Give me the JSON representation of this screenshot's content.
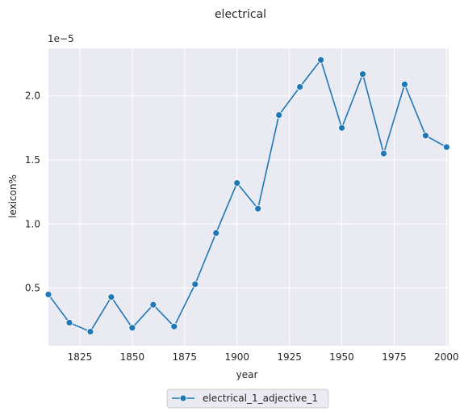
{
  "chart_data": {
    "type": "line",
    "title": "electrical",
    "xlabel": "year",
    "ylabel": "lexicon%",
    "y_scale_label": "1e−5",
    "xlim": [
      1810,
      2001
    ],
    "ylim": [
      0.05,
      2.37
    ],
    "x_ticks": [
      1825,
      1850,
      1875,
      1900,
      1925,
      1950,
      1975,
      2000
    ],
    "y_ticks": [
      0.5,
      1.0,
      1.5,
      2.0
    ],
    "y_tick_labels": [
      "0.5",
      "1.0",
      "1.5",
      "2.0"
    ],
    "grid": true,
    "legend_position": "bottom-center",
    "series": [
      {
        "name": "electrical_1_adjective_1",
        "color": "#1f77b4",
        "x": [
          1810,
          1820,
          1830,
          1840,
          1850,
          1860,
          1870,
          1880,
          1890,
          1900,
          1910,
          1920,
          1930,
          1940,
          1950,
          1960,
          1970,
          1980,
          1990,
          2000
        ],
        "y": [
          0.45,
          0.23,
          0.16,
          0.43,
          0.19,
          0.37,
          0.2,
          0.53,
          0.93,
          1.32,
          1.12,
          1.85,
          2.07,
          2.28,
          1.75,
          2.17,
          1.55,
          2.09,
          1.69,
          1.6
        ]
      }
    ]
  }
}
